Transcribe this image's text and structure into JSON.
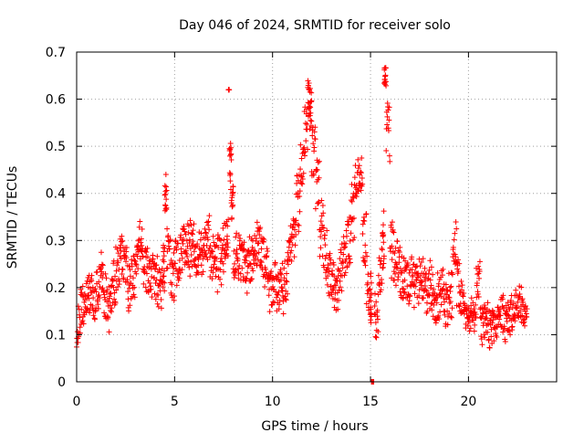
{
  "chart_data": {
    "type": "scatter",
    "title": "Day 046 of 2024, SRMTID for receiver solo",
    "xlabel": "GPS time / hours",
    "ylabel": "SRMTID / TECUs",
    "xlim": [
      0,
      24.5
    ],
    "ylim": [
      0,
      0.7
    ],
    "x_ticks": [
      0,
      5,
      10,
      15,
      20
    ],
    "x_tick_labels": [
      "0",
      "5",
      "10",
      "15",
      "20"
    ],
    "y_ticks": [
      0,
      0.1,
      0.2,
      0.3,
      0.4,
      0.5,
      0.6,
      0.7
    ],
    "y_tick_labels": [
      "0",
      "0.1",
      "0.2",
      "0.3",
      "0.4",
      "0.5",
      "0.6",
      "0.7"
    ],
    "grid": true,
    "marker": "+",
    "marker_color": "#ff0000",
    "series": [
      {
        "name": "SRMTID",
        "x": [
          0.0,
          0.2,
          0.4,
          0.6,
          0.8,
          1.0,
          1.2,
          1.4,
          1.6,
          1.8,
          2.0,
          2.2,
          2.4,
          2.6,
          2.8,
          3.0,
          3.2,
          3.4,
          3.6,
          3.8,
          4.0,
          4.2,
          4.4,
          4.5,
          4.6,
          4.8,
          5.0,
          5.2,
          5.4,
          5.6,
          5.8,
          6.0,
          6.2,
          6.4,
          6.6,
          6.8,
          7.0,
          7.2,
          7.4,
          7.6,
          7.75,
          7.8,
          7.9,
          8.0,
          8.2,
          8.4,
          8.6,
          8.8,
          9.0,
          9.2,
          9.4,
          9.6,
          9.8,
          10.0,
          10.2,
          10.4,
          10.6,
          10.8,
          11.0,
          11.2,
          11.4,
          11.6,
          11.8,
          11.9,
          12.0,
          12.2,
          12.4,
          12.6,
          12.8,
          13.0,
          13.2,
          13.4,
          13.6,
          13.8,
          14.0,
          14.2,
          14.4,
          14.6,
          14.8,
          15.0,
          15.05,
          15.2,
          15.4,
          15.6,
          15.7,
          15.8,
          16.0,
          16.2,
          16.4,
          16.6,
          16.8,
          17.0,
          17.2,
          17.4,
          17.6,
          17.8,
          18.0,
          18.2,
          18.4,
          18.6,
          18.8,
          19.0,
          19.2,
          19.4,
          19.6,
          19.8,
          20.0,
          20.2,
          20.4,
          20.6,
          20.8,
          21.0,
          21.2,
          21.4,
          21.6,
          21.8,
          22.0,
          22.2,
          22.4,
          22.6,
          22.8
        ],
        "y": [
          0.12,
          0.16,
          0.18,
          0.19,
          0.17,
          0.2,
          0.22,
          0.18,
          0.16,
          0.21,
          0.24,
          0.26,
          0.25,
          0.2,
          0.22,
          0.26,
          0.29,
          0.24,
          0.23,
          0.22,
          0.21,
          0.2,
          0.25,
          0.4,
          0.28,
          0.22,
          0.25,
          0.27,
          0.29,
          0.28,
          0.3,
          0.25,
          0.27,
          0.29,
          0.3,
          0.26,
          0.24,
          0.26,
          0.28,
          0.3,
          0.62,
          0.45,
          0.38,
          0.27,
          0.26,
          0.25,
          0.24,
          0.26,
          0.27,
          0.29,
          0.27,
          0.24,
          0.2,
          0.21,
          0.19,
          0.2,
          0.22,
          0.28,
          0.32,
          0.38,
          0.45,
          0.53,
          0.6,
          0.58,
          0.49,
          0.42,
          0.32,
          0.27,
          0.22,
          0.2,
          0.2,
          0.24,
          0.28,
          0.3,
          0.36,
          0.42,
          0.44,
          0.3,
          0.2,
          0.18,
          0.0,
          0.15,
          0.24,
          0.3,
          0.65,
          0.52,
          0.28,
          0.25,
          0.23,
          0.22,
          0.21,
          0.21,
          0.2,
          0.21,
          0.22,
          0.19,
          0.2,
          0.17,
          0.18,
          0.19,
          0.17,
          0.19,
          0.3,
          0.2,
          0.17,
          0.13,
          0.14,
          0.13,
          0.22,
          0.12,
          0.13,
          0.11,
          0.12,
          0.13,
          0.14,
          0.12,
          0.14,
          0.15,
          0.17,
          0.16,
          0.14
        ],
        "spread": [
          0.04,
          0.04,
          0.04,
          0.04,
          0.04,
          0.05,
          0.05,
          0.05,
          0.05,
          0.05,
          0.05,
          0.05,
          0.05,
          0.05,
          0.05,
          0.05,
          0.05,
          0.05,
          0.05,
          0.05,
          0.05,
          0.05,
          0.05,
          0.04,
          0.05,
          0.05,
          0.05,
          0.05,
          0.05,
          0.05,
          0.05,
          0.05,
          0.05,
          0.05,
          0.05,
          0.05,
          0.05,
          0.05,
          0.05,
          0.05,
          0.0,
          0.06,
          0.04,
          0.05,
          0.05,
          0.05,
          0.05,
          0.05,
          0.05,
          0.05,
          0.05,
          0.05,
          0.05,
          0.05,
          0.05,
          0.05,
          0.05,
          0.05,
          0.05,
          0.06,
          0.06,
          0.06,
          0.04,
          0.04,
          0.06,
          0.06,
          0.06,
          0.05,
          0.05,
          0.05,
          0.05,
          0.05,
          0.05,
          0.06,
          0.06,
          0.05,
          0.04,
          0.06,
          0.06,
          0.05,
          0.0,
          0.06,
          0.06,
          0.06,
          0.02,
          0.08,
          0.06,
          0.05,
          0.05,
          0.05,
          0.05,
          0.05,
          0.05,
          0.05,
          0.05,
          0.05,
          0.05,
          0.05,
          0.05,
          0.05,
          0.05,
          0.05,
          0.05,
          0.06,
          0.04,
          0.04,
          0.04,
          0.04,
          0.04,
          0.04,
          0.04,
          0.04,
          0.04,
          0.04,
          0.04,
          0.04,
          0.04,
          0.04,
          0.04,
          0.04,
          0.03
        ]
      }
    ]
  }
}
